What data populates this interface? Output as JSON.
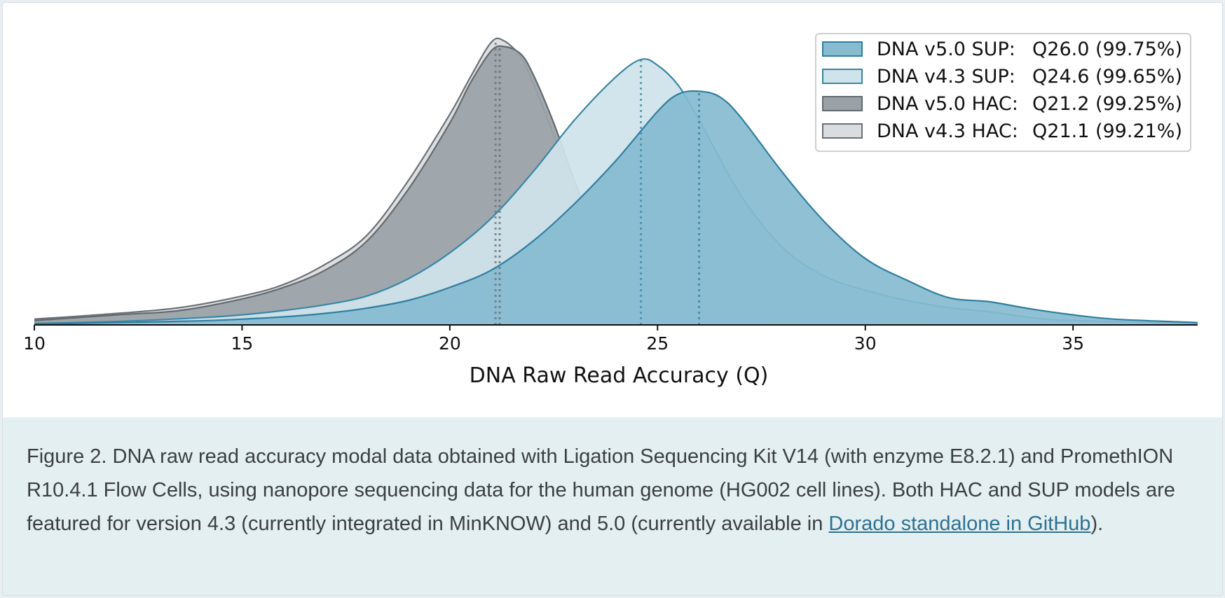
{
  "chart_data": {
    "type": "area",
    "xlabel": "DNA Raw Read Accuracy (Q)",
    "ylabel": "",
    "xlim": [
      10,
      38
    ],
    "ylim": [
      0,
      1.0
    ],
    "xticks": [
      "10",
      "15",
      "20",
      "25",
      "30",
      "35"
    ],
    "grid": false,
    "legend_position": "top-right",
    "series": [
      {
        "name": "DNA v4.3 HAC:",
        "value_label": "Q21.1 (99.21%)",
        "mode": 21.1,
        "fill": "#dadddf",
        "stroke": "#6b7176",
        "points": [
          [
            10,
            0.02
          ],
          [
            12,
            0.04
          ],
          [
            13.5,
            0.06
          ],
          [
            15,
            0.1
          ],
          [
            16,
            0.14
          ],
          [
            17,
            0.21
          ],
          [
            18,
            0.31
          ],
          [
            19,
            0.5
          ],
          [
            20,
            0.73
          ],
          [
            20.5,
            0.86
          ],
          [
            21,
            0.98
          ],
          [
            21.3,
            0.985
          ],
          [
            21.7,
            0.93
          ],
          [
            22,
            0.84
          ],
          [
            22.5,
            0.66
          ],
          [
            23,
            0.46
          ],
          [
            23.5,
            0.29
          ],
          [
            24,
            0.16
          ],
          [
            24.5,
            0.1
          ],
          [
            25,
            0.065
          ],
          [
            26,
            0.035
          ],
          [
            27,
            0.02
          ],
          [
            28,
            0.012
          ],
          [
            30,
            0.006
          ],
          [
            33,
            0.003
          ],
          [
            38,
            0.001
          ]
        ]
      },
      {
        "name": "DNA v5.0 HAC:",
        "value_label": "Q21.2 (99.25%)",
        "mode": 21.2,
        "fill": "#9aa2a7",
        "stroke": "#636a6f",
        "points": [
          [
            10,
            0.015
          ],
          [
            12,
            0.035
          ],
          [
            13.5,
            0.05
          ],
          [
            15,
            0.09
          ],
          [
            16,
            0.13
          ],
          [
            17,
            0.19
          ],
          [
            18,
            0.29
          ],
          [
            19,
            0.47
          ],
          [
            20,
            0.7
          ],
          [
            20.5,
            0.84
          ],
          [
            21,
            0.95
          ],
          [
            21.3,
            0.965
          ],
          [
            21.7,
            0.94
          ],
          [
            22,
            0.87
          ],
          [
            22.5,
            0.7
          ],
          [
            23,
            0.5
          ],
          [
            23.5,
            0.32
          ],
          [
            24,
            0.19
          ],
          [
            24.5,
            0.12
          ],
          [
            25,
            0.075
          ],
          [
            26,
            0.04
          ],
          [
            27,
            0.022
          ],
          [
            28,
            0.013
          ],
          [
            30,
            0.007
          ],
          [
            33,
            0.003
          ],
          [
            38,
            0.001
          ]
        ]
      },
      {
        "name": "DNA v4.3 SUP:",
        "value_label": "Q24.6 (99.65%)",
        "mode": 24.6,
        "fill": "#cfe3ea",
        "stroke": "#3887a6",
        "points": [
          [
            10,
            0.005
          ],
          [
            12,
            0.012
          ],
          [
            14,
            0.025
          ],
          [
            15,
            0.035
          ],
          [
            16,
            0.05
          ],
          [
            17,
            0.07
          ],
          [
            18,
            0.1
          ],
          [
            19,
            0.16
          ],
          [
            20,
            0.25
          ],
          [
            21,
            0.37
          ],
          [
            22,
            0.53
          ],
          [
            23,
            0.71
          ],
          [
            24,
            0.86
          ],
          [
            24.6,
            0.92
          ],
          [
            25,
            0.9
          ],
          [
            25.5,
            0.83
          ],
          [
            26,
            0.71
          ],
          [
            27,
            0.45
          ],
          [
            28,
            0.27
          ],
          [
            29,
            0.17
          ],
          [
            30,
            0.12
          ],
          [
            31,
            0.085
          ],
          [
            32,
            0.06
          ],
          [
            33,
            0.045
          ],
          [
            34,
            0.025
          ],
          [
            35,
            0.015
          ],
          [
            38,
            0.004
          ]
        ]
      },
      {
        "name": "DNA v5.0 SUP:",
        "value_label": "Q26.0 (99.75%)",
        "mode": 26.0,
        "fill": "#86bbd0",
        "stroke": "#2f7ea0",
        "points": [
          [
            10,
            0.003
          ],
          [
            12,
            0.008
          ],
          [
            14,
            0.014
          ],
          [
            15,
            0.02
          ],
          [
            16,
            0.028
          ],
          [
            17,
            0.04
          ],
          [
            18,
            0.058
          ],
          [
            19,
            0.085
          ],
          [
            20,
            0.13
          ],
          [
            21,
            0.19
          ],
          [
            22,
            0.29
          ],
          [
            23,
            0.42
          ],
          [
            24,
            0.57
          ],
          [
            25,
            0.74
          ],
          [
            25.5,
            0.8
          ],
          [
            26,
            0.81
          ],
          [
            26.5,
            0.79
          ],
          [
            27,
            0.72
          ],
          [
            28,
            0.53
          ],
          [
            29,
            0.36
          ],
          [
            30,
            0.23
          ],
          [
            31,
            0.155
          ],
          [
            32,
            0.095
          ],
          [
            33,
            0.08
          ],
          [
            34,
            0.055
          ],
          [
            35,
            0.035
          ],
          [
            36,
            0.02
          ],
          [
            38,
            0.008
          ]
        ]
      }
    ]
  },
  "legend_order": [
    3,
    2,
    1,
    0
  ],
  "caption": {
    "text": "Figure 2. DNA raw read accuracy modal data obtained with Ligation Sequencing Kit V14 (with enzyme E8.2.1) and PromethION R10.4.1 Flow Cells, using nanopore sequencing data for the human genome (HG002 cell lines). Both HAC and SUP models are featured for version 4.3 (currently integrated in MinKNOW) and 5.0 (currently available in ",
    "link_text": "Dorado standalone in GitHub",
    "text_after": ")."
  }
}
